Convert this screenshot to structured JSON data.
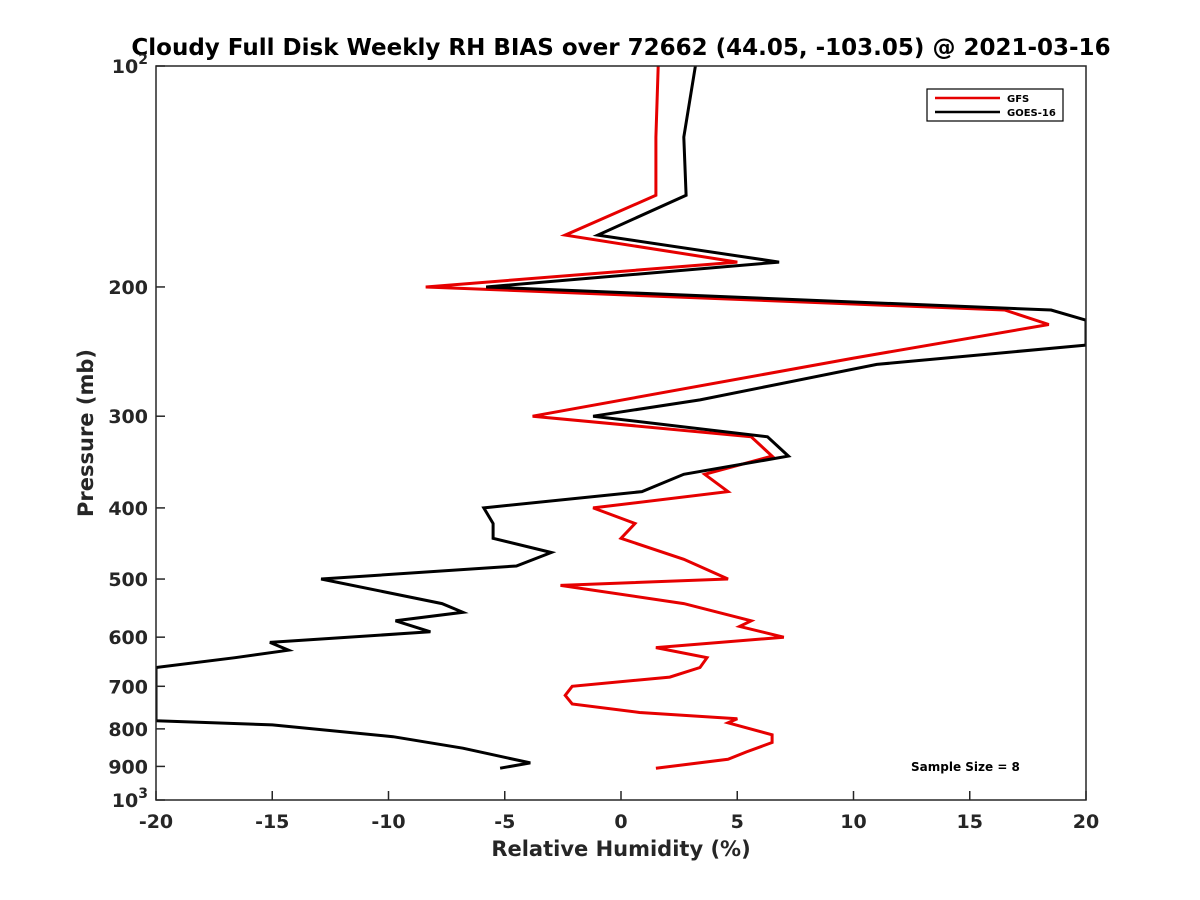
{
  "chart_data": {
    "type": "line",
    "title": "Cloudy Full Disk Weekly RH BIAS over 72662 (44.05, -103.05) @ 2021-03-16",
    "xlabel": "Relative Humidity (%)",
    "ylabel": "Pressure (mb)",
    "xlim": [
      -20,
      20
    ],
    "ylim": [
      100,
      1000
    ],
    "y_scale": "log",
    "y_reversed": true,
    "x_ticks": [
      "-20",
      "-15",
      "-10",
      "-5",
      "0",
      "5",
      "10",
      "15",
      "20"
    ],
    "y_ticks": [
      {
        "value": 100,
        "base": "10",
        "exp": "2"
      },
      {
        "value": 200,
        "label": "200"
      },
      {
        "value": 300,
        "label": "300"
      },
      {
        "value": 400,
        "label": "400"
      },
      {
        "value": 500,
        "label": "500"
      },
      {
        "value": 600,
        "label": "600"
      },
      {
        "value": 700,
        "label": "700"
      },
      {
        "value": 800,
        "label": "800"
      },
      {
        "value": 900,
        "label": "900"
      },
      {
        "value": 1000,
        "base": "10",
        "exp": "3"
      }
    ],
    "grid": false,
    "legend_position": "top-right",
    "series": [
      {
        "name": "GFS",
        "color": "#e60000",
        "points": [
          [
            1.6,
            100
          ],
          [
            1.5,
            125
          ],
          [
            1.5,
            150
          ],
          [
            -2.4,
            170
          ],
          [
            5.0,
            185
          ],
          [
            -8.4,
            200
          ],
          [
            16.5,
            215
          ],
          [
            18.4,
            225
          ],
          [
            10.0,
            250
          ],
          [
            -3.8,
            300
          ],
          [
            5.6,
            320
          ],
          [
            6.5,
            340
          ],
          [
            3.6,
            360
          ],
          [
            4.6,
            380
          ],
          [
            -1.2,
            400
          ],
          [
            0.6,
            420
          ],
          [
            0.0,
            440
          ],
          [
            2.7,
            470
          ],
          [
            4.6,
            500
          ],
          [
            -2.6,
            510
          ],
          [
            2.7,
            540
          ],
          [
            5.6,
            570
          ],
          [
            5.1,
            580
          ],
          [
            7.0,
            600
          ],
          [
            1.5,
            620
          ],
          [
            3.7,
            640
          ],
          [
            3.4,
            660
          ],
          [
            2.1,
            680
          ],
          [
            -2.1,
            700
          ],
          [
            -2.4,
            720
          ],
          [
            -2.1,
            740
          ],
          [
            0.8,
            760
          ],
          [
            5.0,
            775
          ],
          [
            4.6,
            785
          ],
          [
            6.5,
            815
          ],
          [
            6.5,
            835
          ],
          [
            5.4,
            860
          ],
          [
            4.6,
            880
          ],
          [
            1.5,
            905
          ]
        ]
      },
      {
        "name": "GOES-16",
        "color": "#000000",
        "points": [
          [
            3.2,
            100
          ],
          [
            2.7,
            125
          ],
          [
            2.8,
            150
          ],
          [
            -1.0,
            170
          ],
          [
            6.8,
            185
          ],
          [
            -5.8,
            200
          ],
          [
            18.5,
            215
          ],
          [
            20.0,
            222
          ],
          [
            20.0,
            240
          ],
          [
            11.0,
            255
          ],
          [
            3.4,
            285
          ],
          [
            -1.2,
            300
          ],
          [
            6.3,
            320
          ],
          [
            7.2,
            340
          ],
          [
            2.7,
            360
          ],
          [
            0.9,
            380
          ],
          [
            -5.9,
            400
          ],
          [
            -5.5,
            420
          ],
          [
            -5.5,
            440
          ],
          [
            -3.0,
            460
          ],
          [
            -4.5,
            480
          ],
          [
            -12.9,
            500
          ],
          [
            -7.7,
            540
          ],
          [
            -6.8,
            555
          ],
          [
            -9.7,
            570
          ],
          [
            -8.2,
            590
          ],
          [
            -15.1,
            610
          ],
          [
            -14.3,
            625
          ],
          [
            -16.6,
            640
          ],
          [
            -20.0,
            660
          ],
          [
            -20.0,
            780
          ],
          [
            -15.0,
            790
          ],
          [
            -9.8,
            820
          ],
          [
            -6.8,
            850
          ],
          [
            -3.9,
            890
          ],
          [
            -5.2,
            905
          ]
        ]
      }
    ],
    "annotation": "Sample Size = 8"
  }
}
